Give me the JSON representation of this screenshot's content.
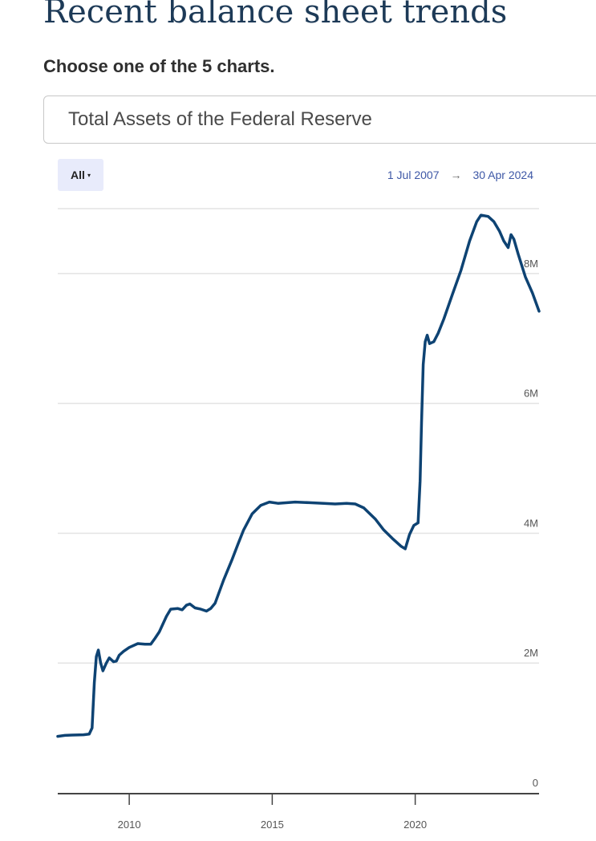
{
  "header": {
    "title": "Recent balance sheet trends",
    "prompt": "Choose one of the 5 charts."
  },
  "selector": {
    "value": "Total Assets of the Federal Reserve"
  },
  "controls": {
    "range_label": "All",
    "caret": "▾",
    "start_date": "1 Jul 2007",
    "arrow": "→",
    "end_date": "30 Apr 2024"
  },
  "colors": {
    "line": "#0e4373",
    "grid": "#e3e3e3",
    "axis": "#444444"
  },
  "chart_data": {
    "type": "line",
    "title": "",
    "xlabel": "",
    "ylabel": "",
    "xlim": [
      2007.5,
      2024.33
    ],
    "ylim": [
      0,
      9000000
    ],
    "grid": true,
    "y_ticks": [
      {
        "value": 0,
        "label": "0"
      },
      {
        "value": 2000000,
        "label": "2M"
      },
      {
        "value": 4000000,
        "label": "4M"
      },
      {
        "value": 6000000,
        "label": "6M"
      },
      {
        "value": 8000000,
        "label": "8M"
      }
    ],
    "x_ticks": [
      {
        "value": 2010,
        "label": "2010"
      },
      {
        "value": 2015,
        "label": "2015"
      },
      {
        "value": 2020,
        "label": "2020"
      }
    ],
    "series": [
      {
        "values": [
          [
            2007.5,
            870000
          ],
          [
            2007.75,
            885000
          ],
          [
            2008.0,
            890000
          ],
          [
            2008.4,
            895000
          ],
          [
            2008.6,
            905000
          ],
          [
            2008.7,
            1000000
          ],
          [
            2008.78,
            1700000
          ],
          [
            2008.85,
            2100000
          ],
          [
            2008.92,
            2200000
          ],
          [
            2009.0,
            2000000
          ],
          [
            2009.08,
            1880000
          ],
          [
            2009.2,
            2000000
          ],
          [
            2009.3,
            2080000
          ],
          [
            2009.45,
            2020000
          ],
          [
            2009.55,
            2030000
          ],
          [
            2009.65,
            2120000
          ],
          [
            2009.8,
            2180000
          ],
          [
            2010.0,
            2240000
          ],
          [
            2010.3,
            2300000
          ],
          [
            2010.55,
            2290000
          ],
          [
            2010.75,
            2290000
          ],
          [
            2010.9,
            2380000
          ],
          [
            2011.05,
            2480000
          ],
          [
            2011.3,
            2720000
          ],
          [
            2011.45,
            2830000
          ],
          [
            2011.7,
            2840000
          ],
          [
            2011.85,
            2820000
          ],
          [
            2012.0,
            2890000
          ],
          [
            2012.12,
            2910000
          ],
          [
            2012.3,
            2850000
          ],
          [
            2012.5,
            2830000
          ],
          [
            2012.7,
            2800000
          ],
          [
            2012.85,
            2840000
          ],
          [
            2013.0,
            2920000
          ],
          [
            2013.3,
            3280000
          ],
          [
            2013.6,
            3600000
          ],
          [
            2013.8,
            3830000
          ],
          [
            2014.0,
            4050000
          ],
          [
            2014.3,
            4300000
          ],
          [
            2014.6,
            4430000
          ],
          [
            2014.9,
            4480000
          ],
          [
            2015.2,
            4460000
          ],
          [
            2015.8,
            4480000
          ],
          [
            2016.3,
            4470000
          ],
          [
            2016.8,
            4460000
          ],
          [
            2017.2,
            4450000
          ],
          [
            2017.6,
            4460000
          ],
          [
            2017.9,
            4450000
          ],
          [
            2018.2,
            4390000
          ],
          [
            2018.6,
            4220000
          ],
          [
            2018.9,
            4050000
          ],
          [
            2019.2,
            3920000
          ],
          [
            2019.5,
            3800000
          ],
          [
            2019.65,
            3760000
          ],
          [
            2019.8,
            3980000
          ],
          [
            2019.95,
            4120000
          ],
          [
            2020.1,
            4160000
          ],
          [
            2020.17,
            4800000
          ],
          [
            2020.22,
            5700000
          ],
          [
            2020.28,
            6600000
          ],
          [
            2020.35,
            6950000
          ],
          [
            2020.42,
            7050000
          ],
          [
            2020.5,
            6920000
          ],
          [
            2020.65,
            6950000
          ],
          [
            2020.8,
            7080000
          ],
          [
            2021.0,
            7300000
          ],
          [
            2021.3,
            7680000
          ],
          [
            2021.6,
            8050000
          ],
          [
            2021.9,
            8500000
          ],
          [
            2022.15,
            8800000
          ],
          [
            2022.3,
            8900000
          ],
          [
            2022.55,
            8880000
          ],
          [
            2022.75,
            8800000
          ],
          [
            2022.95,
            8650000
          ],
          [
            2023.1,
            8500000
          ],
          [
            2023.25,
            8400000
          ],
          [
            2023.35,
            8600000
          ],
          [
            2023.45,
            8530000
          ],
          [
            2023.6,
            8300000
          ],
          [
            2023.85,
            7950000
          ],
          [
            2024.1,
            7700000
          ],
          [
            2024.33,
            7420000
          ]
        ]
      }
    ]
  }
}
